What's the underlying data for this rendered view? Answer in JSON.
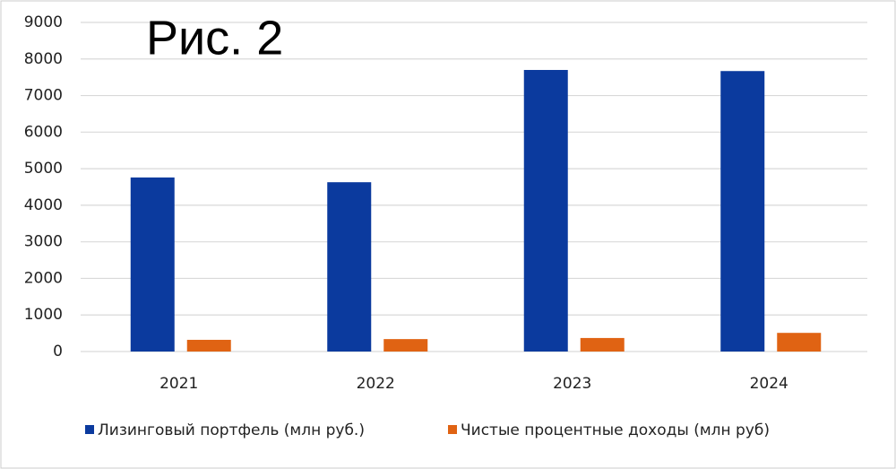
{
  "chart_data": {
    "type": "bar",
    "title": "Рис. 2",
    "categories": [
      "2021",
      "2022",
      "2023",
      "2024"
    ],
    "series": [
      {
        "name": "Лизинговый портфель (млн руб.)",
        "color": "#0b3a9e",
        "values": [
          4760,
          4630,
          7700,
          7670
        ]
      },
      {
        "name": "Чистые процентные доходы (млн руб)",
        "color": "#e06313",
        "values": [
          320,
          340,
          370,
          510
        ]
      }
    ],
    "ylim": [
      0,
      9000
    ],
    "yticks": [
      0,
      1000,
      2000,
      3000,
      4000,
      5000,
      6000,
      7000,
      8000,
      9000
    ],
    "grid": true,
    "legend": "bottom"
  }
}
